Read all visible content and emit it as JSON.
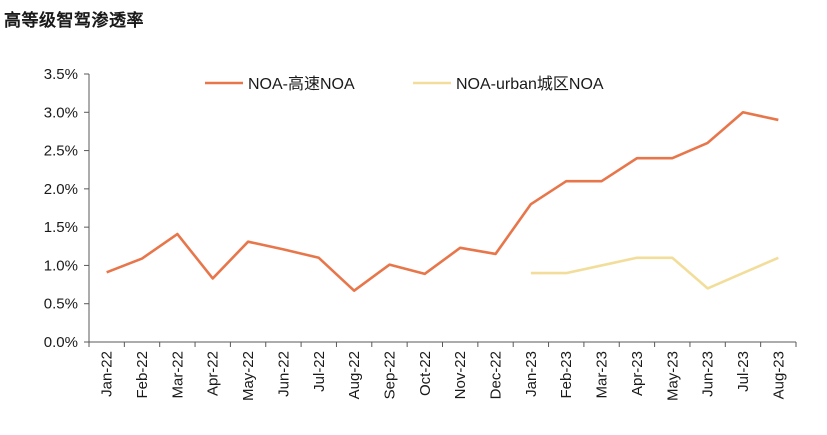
{
  "chart_data": {
    "type": "line",
    "title": "高等级智驾渗透率",
    "categories": [
      "Jan-22",
      "Feb-22",
      "Mar-22",
      "Apr-22",
      "May-22",
      "Jun-22",
      "Jul-22",
      "Aug-22",
      "Sep-22",
      "Oct-22",
      "Nov-22",
      "Dec-22",
      "Jan-23",
      "Feb-23",
      "Mar-23",
      "Apr-23",
      "May-23",
      "Jun-23",
      "Jul-23",
      "Aug-23"
    ],
    "y_ticks": [
      "0.0%",
      "0.5%",
      "1.0%",
      "1.5%",
      "2.0%",
      "2.5%",
      "3.0%",
      "3.5%"
    ],
    "ylim": [
      0,
      3.5
    ],
    "y_unit": "%",
    "legend_position": "top",
    "series": [
      {
        "name": "NOA-高速NOA",
        "color": "#E8764B",
        "values": [
          0.91,
          1.09,
          1.41,
          0.83,
          1.31,
          1.21,
          1.1,
          0.67,
          1.01,
          0.89,
          1.23,
          1.15,
          1.8,
          2.1,
          2.1,
          2.4,
          2.4,
          2.6,
          3.0,
          2.9
        ]
      },
      {
        "name": "NOA-urban城区NOA",
        "color": "#F2DE9A",
        "values": [
          null,
          null,
          null,
          null,
          null,
          null,
          null,
          null,
          null,
          null,
          null,
          null,
          0.9,
          0.9,
          1.0,
          1.1,
          1.1,
          0.7,
          0.9,
          1.1
        ]
      }
    ]
  }
}
